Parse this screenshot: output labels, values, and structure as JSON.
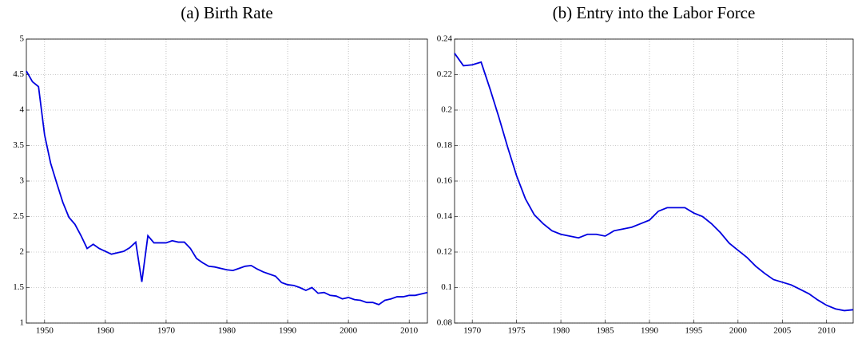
{
  "chart_data": [
    {
      "type": "line",
      "title": "(a) Birth Rate",
      "grid": true,
      "xlim": [
        1947,
        2013
      ],
      "xticks": [
        1950,
        1960,
        1970,
        1980,
        1990,
        2000,
        2010
      ],
      "ylim": [
        1,
        5
      ],
      "yticks": [
        1,
        1.5,
        2,
        2.5,
        3,
        3.5,
        4,
        4.5,
        5
      ],
      "x": [
        1947,
        1948,
        1949,
        1950,
        1951,
        1952,
        1953,
        1954,
        1955,
        1956,
        1957,
        1958,
        1959,
        1960,
        1961,
        1962,
        1963,
        1964,
        1965,
        1966,
        1967,
        1968,
        1969,
        1970,
        1971,
        1972,
        1973,
        1974,
        1975,
        1976,
        1977,
        1978,
        1979,
        1980,
        1981,
        1982,
        1983,
        1984,
        1985,
        1986,
        1987,
        1988,
        1989,
        1990,
        1991,
        1992,
        1993,
        1994,
        1995,
        1996,
        1997,
        1998,
        1999,
        2000,
        2001,
        2002,
        2003,
        2004,
        2005,
        2006,
        2007,
        2008,
        2009,
        2010,
        2011,
        2012,
        2013
      ],
      "series": [
        {
          "color": "#0000e0",
          "values": [
            4.55,
            4.4,
            4.33,
            3.65,
            3.25,
            2.97,
            2.7,
            2.49,
            2.39,
            2.23,
            2.05,
            2.11,
            2.05,
            2.01,
            1.97,
            1.99,
            2.01,
            2.06,
            2.14,
            1.58,
            2.23,
            2.13,
            2.13,
            2.13,
            2.16,
            2.14,
            2.14,
            2.05,
            1.91,
            1.85,
            1.8,
            1.79,
            1.77,
            1.75,
            1.74,
            1.77,
            1.8,
            1.81,
            1.76,
            1.72,
            1.69,
            1.66,
            1.57,
            1.54,
            1.53,
            1.5,
            1.46,
            1.5,
            1.42,
            1.43,
            1.39,
            1.38,
            1.34,
            1.36,
            1.33,
            1.32,
            1.29,
            1.29,
            1.26,
            1.32,
            1.34,
            1.37,
            1.37,
            1.39,
            1.39,
            1.41,
            1.43
          ]
        }
      ]
    },
    {
      "type": "line",
      "title": "(b) Entry into the Labor Force",
      "grid": true,
      "xlim": [
        1968,
        2013
      ],
      "xticks": [
        1970,
        1975,
        1980,
        1985,
        1990,
        1995,
        2000,
        2005,
        2010
      ],
      "ylim": [
        0.08,
        0.24
      ],
      "yticks": [
        0.08,
        0.1,
        0.12,
        0.14,
        0.16,
        0.18,
        0.2,
        0.22,
        0.24
      ],
      "x": [
        1968,
        1969,
        1970,
        1971,
        1972,
        1973,
        1974,
        1975,
        1976,
        1977,
        1978,
        1979,
        1980,
        1981,
        1982,
        1983,
        1984,
        1985,
        1986,
        1987,
        1988,
        1989,
        1990,
        1991,
        1992,
        1993,
        1994,
        1995,
        1996,
        1997,
        1998,
        1999,
        2000,
        2001,
        2002,
        2003,
        2004,
        2005,
        2006,
        2007,
        2008,
        2009,
        2010,
        2011,
        2012,
        2013
      ],
      "series": [
        {
          "color": "#0000e0",
          "values": [
            0.232,
            0.225,
            0.2255,
            0.227,
            0.212,
            0.196,
            0.179,
            0.163,
            0.15,
            0.141,
            0.136,
            0.132,
            0.13,
            0.129,
            0.128,
            0.13,
            0.13,
            0.129,
            0.132,
            0.133,
            0.134,
            0.136,
            0.138,
            0.143,
            0.145,
            0.145,
            0.145,
            0.142,
            0.14,
            0.136,
            0.131,
            0.125,
            0.121,
            0.117,
            0.112,
            0.108,
            0.1045,
            0.103,
            0.1015,
            0.099,
            0.0965,
            0.093,
            0.09,
            0.088,
            0.087,
            0.0875
          ]
        }
      ]
    }
  ]
}
